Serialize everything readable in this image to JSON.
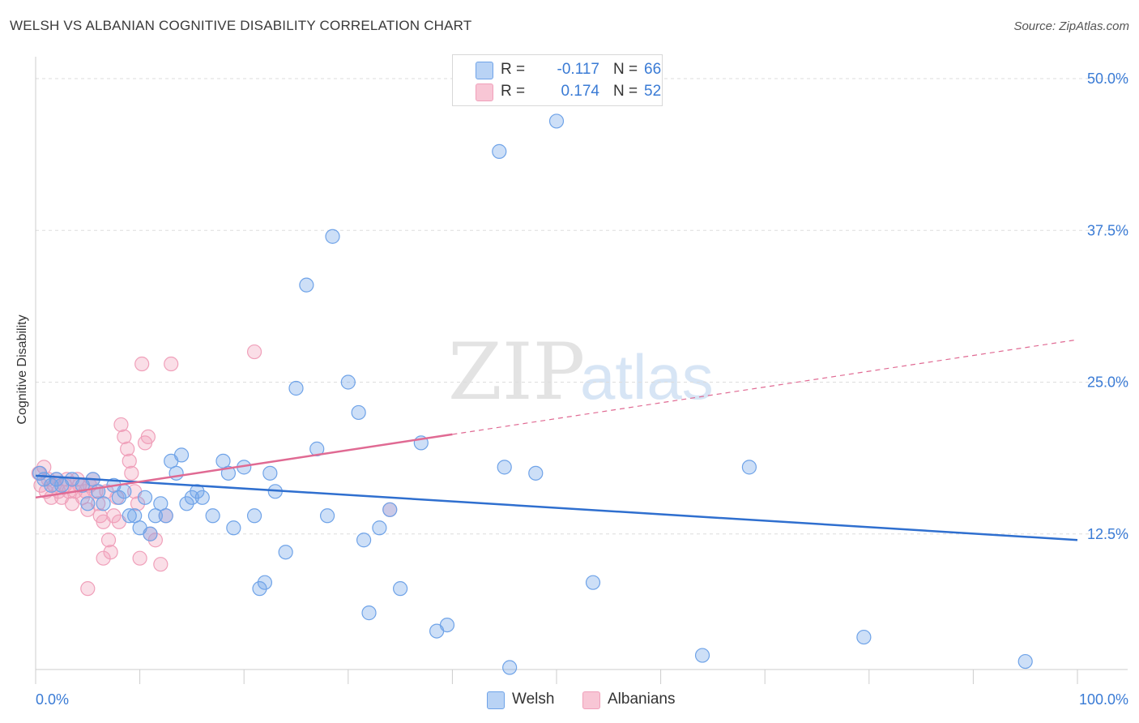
{
  "title": "WELSH VS ALBANIAN COGNITIVE DISABILITY CORRELATION CHART",
  "source": "Source: ZipAtlas.com",
  "watermark": {
    "part1": "ZIP",
    "part2": "atlas"
  },
  "legend_top": {
    "rows": [
      {
        "r_label": "R =",
        "r_value": "-0.117",
        "n_label": "N =",
        "n_value": "66"
      },
      {
        "r_label": "R =",
        "r_value": "0.174",
        "n_label": "N =",
        "n_value": "52"
      }
    ]
  },
  "legend_bottom": {
    "welsh": "Welsh",
    "albanians": "Albanians"
  },
  "chart_data": {
    "type": "scatter",
    "title": "WELSH VS ALBANIAN COGNITIVE DISABILITY CORRELATION CHART",
    "xlabel": "",
    "ylabel": "Cognitive Disability",
    "xlim": [
      0,
      100
    ],
    "ylim": [
      0,
      52
    ],
    "x_tick_labels": [
      "0.0%",
      "100.0%"
    ],
    "y_ticks": [
      12.5,
      25.0,
      37.5,
      50.0
    ],
    "y_tick_labels": [
      "12.5%",
      "25.0%",
      "37.5%",
      "50.0%"
    ],
    "grid": true,
    "legend_position": "top-center",
    "colors": {
      "welsh": "#6fa3e8",
      "welsh_line": "#2f6fcf",
      "albanians": "#f0a0ba",
      "albanians_line": "#e06a93",
      "tick_text": "#3a7bd5"
    },
    "series": [
      {
        "name": "Welsh",
        "r": -0.117,
        "n": 66,
        "trend": {
          "x": [
            0,
            100
          ],
          "y": [
            17.3,
            12.0
          ]
        },
        "points": [
          [
            0.4,
            17.5
          ],
          [
            0.8,
            17.0
          ],
          [
            1.5,
            16.5
          ],
          [
            2.0,
            17.0
          ],
          [
            2.5,
            16.5
          ],
          [
            3.5,
            17.0
          ],
          [
            4.5,
            16.5
          ],
          [
            5.0,
            15.0
          ],
          [
            5.5,
            17.0
          ],
          [
            6.0,
            16.0
          ],
          [
            6.5,
            15.0
          ],
          [
            7.5,
            16.5
          ],
          [
            8.0,
            15.5
          ],
          [
            8.5,
            16.0
          ],
          [
            9.0,
            14.0
          ],
          [
            9.5,
            14.0
          ],
          [
            10.0,
            13.0
          ],
          [
            10.5,
            15.5
          ],
          [
            11.0,
            12.5
          ],
          [
            11.5,
            14.0
          ],
          [
            12.0,
            15.0
          ],
          [
            12.5,
            14.0
          ],
          [
            13.0,
            18.5
          ],
          [
            13.5,
            17.5
          ],
          [
            14.0,
            19.0
          ],
          [
            14.5,
            15.0
          ],
          [
            15.0,
            15.5
          ],
          [
            15.5,
            16.0
          ],
          [
            16.0,
            15.5
          ],
          [
            17.0,
            14.0
          ],
          [
            18.0,
            18.5
          ],
          [
            18.5,
            17.5
          ],
          [
            19.0,
            13.0
          ],
          [
            20.0,
            18.0
          ],
          [
            21.0,
            14.0
          ],
          [
            21.5,
            8.0
          ],
          [
            22.0,
            8.5
          ],
          [
            22.5,
            17.5
          ],
          [
            23.0,
            16.0
          ],
          [
            24.0,
            11.0
          ],
          [
            25.0,
            24.5
          ],
          [
            26.0,
            33.0
          ],
          [
            27.0,
            19.5
          ],
          [
            28.0,
            14.0
          ],
          [
            28.5,
            37.0
          ],
          [
            30.0,
            25.0
          ],
          [
            31.0,
            22.5
          ],
          [
            31.5,
            12.0
          ],
          [
            32.0,
            6.0
          ],
          [
            33.0,
            13.0
          ],
          [
            34.0,
            14.5
          ],
          [
            35.0,
            8.0
          ],
          [
            37.0,
            20.0
          ],
          [
            38.5,
            4.5
          ],
          [
            39.5,
            5.0
          ],
          [
            44.5,
            44.0
          ],
          [
            45.0,
            18.0
          ],
          [
            45.5,
            1.5
          ],
          [
            47.0,
            50.0
          ],
          [
            48.0,
            17.5
          ],
          [
            50.0,
            46.5
          ],
          [
            53.5,
            8.5
          ],
          [
            64.0,
            2.5
          ],
          [
            68.5,
            18.0
          ],
          [
            79.5,
            4.0
          ],
          [
            95.0,
            2.0
          ]
        ]
      },
      {
        "name": "Albanians",
        "r": 0.174,
        "n": 52,
        "trend": {
          "x": [
            0,
            100
          ],
          "y": [
            15.5,
            28.5
          ],
          "solid_until_x": 40
        },
        "points": [
          [
            0.3,
            17.5
          ],
          [
            0.5,
            16.5
          ],
          [
            0.8,
            18.0
          ],
          [
            1.0,
            16.0
          ],
          [
            1.2,
            17.0
          ],
          [
            1.5,
            15.5
          ],
          [
            1.8,
            16.5
          ],
          [
            2.0,
            17.0
          ],
          [
            2.2,
            16.0
          ],
          [
            2.5,
            15.5
          ],
          [
            2.8,
            16.5
          ],
          [
            3.0,
            17.0
          ],
          [
            3.2,
            16.0
          ],
          [
            3.5,
            15.0
          ],
          [
            3.8,
            16.0
          ],
          [
            4.0,
            17.0
          ],
          [
            4.2,
            16.5
          ],
          [
            4.5,
            15.5
          ],
          [
            4.8,
            16.0
          ],
          [
            5.0,
            14.5
          ],
          [
            5.2,
            16.5
          ],
          [
            5.5,
            17.0
          ],
          [
            5.8,
            16.0
          ],
          [
            6.0,
            15.0
          ],
          [
            6.2,
            14.0
          ],
          [
            6.5,
            13.5
          ],
          [
            6.8,
            16.0
          ],
          [
            7.0,
            12.0
          ],
          [
            7.2,
            11.0
          ],
          [
            7.5,
            14.0
          ],
          [
            7.8,
            15.5
          ],
          [
            8.0,
            13.5
          ],
          [
            8.2,
            21.5
          ],
          [
            8.5,
            20.5
          ],
          [
            8.8,
            19.5
          ],
          [
            9.0,
            18.5
          ],
          [
            9.2,
            17.5
          ],
          [
            9.5,
            16.0
          ],
          [
            9.8,
            15.0
          ],
          [
            10.0,
            10.5
          ],
          [
            10.2,
            26.5
          ],
          [
            10.5,
            20.0
          ],
          [
            10.8,
            20.5
          ],
          [
            11.0,
            12.5
          ],
          [
            11.5,
            12.0
          ],
          [
            12.0,
            10.0
          ],
          [
            12.5,
            14.0
          ],
          [
            13.0,
            26.5
          ],
          [
            5.0,
            8.0
          ],
          [
            6.5,
            10.5
          ],
          [
            21.0,
            27.5
          ],
          [
            34.0,
            14.5
          ]
        ]
      }
    ]
  }
}
